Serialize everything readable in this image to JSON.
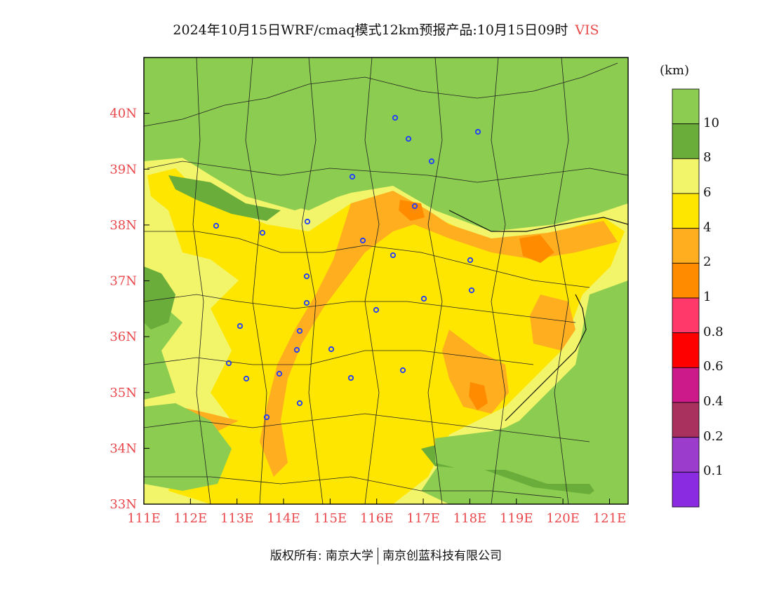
{
  "header": {
    "title": "2024年10月15日WRF/cmaq模式12km预报产品:10月15日09时",
    "variable": "VIS"
  },
  "map": {
    "lon_range": [
      111,
      121.4
    ],
    "lat_range": [
      33,
      41
    ],
    "lon_ticks": [
      "111E",
      "112E",
      "113E",
      "114E",
      "115E",
      "116E",
      "117E",
      "118E",
      "119E",
      "120E",
      "121E"
    ],
    "lat_ticks": [
      "33N",
      "34N",
      "35N",
      "36N",
      "37N",
      "38N",
      "39N",
      "40N"
    ],
    "tick_color": "#e8484c",
    "city_marker_color": "#1f3cff"
  },
  "legend": {
    "unit": "(km)",
    "labels": [
      "10",
      "8",
      "6",
      "4",
      "2",
      "1",
      "0.8",
      "0.6",
      "0.4",
      "0.2",
      "0.1"
    ],
    "colors": [
      "#8ccc50",
      "#6aad3a",
      "#f2f56a",
      "#ffe600",
      "#ffae1f",
      "#ff8c00",
      "#ff3a6a",
      "#ff0000",
      "#cc1a8a",
      "#a8315e",
      "#9b3ccc",
      "#8a2be2"
    ]
  },
  "footer": {
    "left": "版权所有: 南京大学",
    "right": "南京创蓝科技有限公司"
  }
}
